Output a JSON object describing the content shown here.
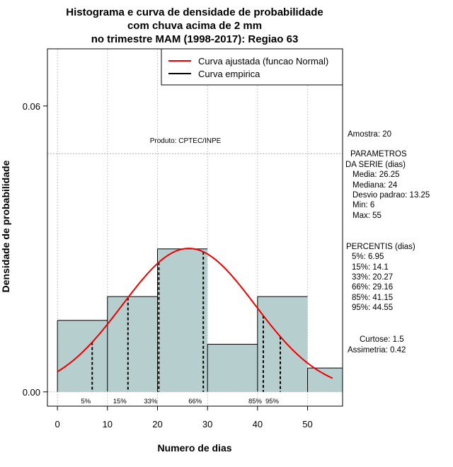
{
  "chart_data": {
    "type": "bar",
    "title_lines": [
      "Histograma e curva de densidade de probabilidade",
      "com chuva acima de 2 mm",
      "no trimestre MAM (1998-2017): Regiao 63"
    ],
    "xlabel": "Numero de dias",
    "ylabel": "Densidade de probabilidade",
    "xlim": [
      -2,
      57
    ],
    "ylim": [
      -0.003,
      0.072
    ],
    "x_ticks": [
      0,
      10,
      20,
      30,
      40,
      50
    ],
    "x_tick_labels": [
      "0",
      "10",
      "20",
      "30",
      "40",
      "50"
    ],
    "y_ticks": [
      0.0,
      0.06
    ],
    "y_tick_labels": [
      "0.00",
      "0.06"
    ],
    "y_hline": 0.05,
    "grid": true,
    "bins": [
      {
        "x0": 0,
        "x1": 10,
        "density": 0.015
      },
      {
        "x0": 10,
        "x1": 20,
        "density": 0.02
      },
      {
        "x0": 20,
        "x1": 30,
        "density": 0.03
      },
      {
        "x0": 30,
        "x1": 40,
        "density": 0.01
      },
      {
        "x0": 40,
        "x1": 50,
        "density": 0.02
      },
      {
        "x0": 50,
        "x1": 57,
        "density": 0.005
      }
    ],
    "bar_color": "#b6cece",
    "normal_curve": {
      "mean": 26.25,
      "sd": 13.25,
      "x_from": 0,
      "x_to": 55,
      "color": "#ee0000"
    },
    "percentile_lines": [
      {
        "label": "5%",
        "x": 6.95
      },
      {
        "label": "15%",
        "x": 14.1
      },
      {
        "label": "33%",
        "x": 20.27
      },
      {
        "label": "66%",
        "x": 29.16
      },
      {
        "label": "85%",
        "x": 41.15
      },
      {
        "label": "95%",
        "x": 44.55
      }
    ],
    "legend": {
      "position": "top-right",
      "entries": [
        {
          "label": "Curva ajustada (funcao Normal)",
          "color": "#ee0000"
        },
        {
          "label": "Curva empirica",
          "color": "#000000"
        }
      ]
    },
    "annotation": "Produto: CPTEC/INPE"
  },
  "side_panel": {
    "amostra": "Amostra: 20",
    "param_title_1": "PARAMETROS",
    "param_title_2": "DA SERIE (dias)",
    "params": [
      "Media: 26.25",
      "Mediana: 24",
      "Desvio padrao: 13.25",
      "Min: 6",
      "Max: 55"
    ],
    "perc_title": "PERCENTIS (dias)",
    "percentis": [
      "5%: 6.95",
      "15%: 14.1",
      "33%: 20.27",
      "66%: 29.16",
      "85%: 41.15",
      "95%: 44.55"
    ],
    "curtose": "Curtose: 1.5",
    "assimetria": "Assimetria: 0.42"
  }
}
